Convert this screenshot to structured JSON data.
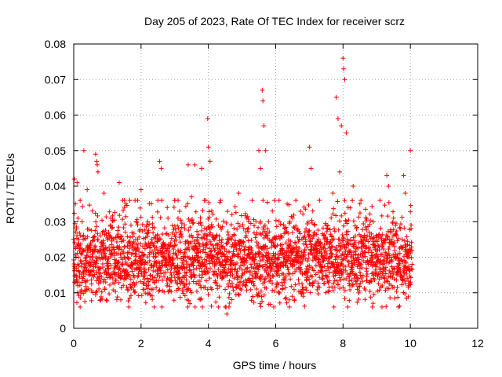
{
  "chart_data": {
    "type": "scatter",
    "title": "Day 205 of 2023, Rate Of TEC Index for receiver scrz",
    "xlabel": "GPS time / hours",
    "ylabel": "ROTI / TECUs",
    "xlim": [
      0,
      12
    ],
    "ylim": [
      0,
      0.08
    ],
    "xticks": [
      0,
      2,
      4,
      6,
      8,
      10,
      12
    ],
    "yticks": [
      0,
      0.01,
      0.02,
      0.03,
      0.04,
      0.05,
      0.06,
      0.07,
      0.08
    ],
    "xtick_labels": [
      "0",
      "2",
      "4",
      "6",
      "8",
      "10",
      "12"
    ],
    "ytick_labels": [
      "0",
      "0.01",
      "0.02",
      "0.03",
      "0.04",
      "0.05",
      "0.06",
      "0.07",
      "0.08"
    ],
    "grid": true,
    "marker": "+",
    "color": "#ff0000",
    "x_data_range": [
      0,
      10.05
    ],
    "series": [
      {
        "name": "ROTI",
        "points": [
          [
            0.02,
            0.042
          ],
          [
            0.05,
            0.035
          ],
          [
            0.08,
            0.028
          ],
          [
            0.1,
            0.041
          ],
          [
            0.12,
            0.012
          ],
          [
            0.15,
            0.025
          ],
          [
            0.2,
            0.019
          ],
          [
            0.25,
            0.03
          ],
          [
            0.3,
            0.05
          ],
          [
            0.35,
            0.022
          ],
          [
            0.4,
            0.039
          ],
          [
            0.45,
            0.015
          ],
          [
            0.5,
            0.024
          ],
          [
            0.55,
            0.033
          ],
          [
            0.6,
            0.018
          ],
          [
            0.65,
            0.049
          ],
          [
            0.68,
            0.047
          ],
          [
            0.7,
            0.046
          ],
          [
            0.72,
            0.044
          ],
          [
            0.75,
            0.02
          ],
          [
            0.8,
            0.008
          ],
          [
            0.85,
            0.027
          ],
          [
            0.9,
            0.038
          ],
          [
            0.95,
            0.013
          ],
          [
            1.0,
            0.022
          ],
          [
            1.1,
            0.031
          ],
          [
            1.2,
            0.017
          ],
          [
            1.3,
            0.026
          ],
          [
            1.35,
            0.041
          ],
          [
            1.4,
            0.014
          ],
          [
            1.5,
            0.034
          ],
          [
            1.55,
            0.035
          ],
          [
            1.6,
            0.021
          ],
          [
            1.7,
            0.029
          ],
          [
            1.8,
            0.012
          ],
          [
            1.9,
            0.025
          ],
          [
            2.0,
            0.039
          ],
          [
            2.1,
            0.018
          ],
          [
            2.2,
            0.03
          ],
          [
            2.3,
            0.011
          ],
          [
            2.4,
            0.024
          ],
          [
            2.5,
            0.036
          ],
          [
            2.55,
            0.047
          ],
          [
            2.6,
            0.045
          ],
          [
            2.7,
            0.02
          ],
          [
            2.8,
            0.031
          ],
          [
            2.9,
            0.015
          ],
          [
            3.0,
            0.036
          ],
          [
            3.1,
            0.022
          ],
          [
            3.2,
            0.013
          ],
          [
            3.3,
            0.028
          ],
          [
            3.4,
            0.046
          ],
          [
            3.45,
            0.007
          ],
          [
            3.5,
            0.037
          ],
          [
            3.6,
            0.046
          ],
          [
            3.7,
            0.024
          ],
          [
            3.8,
            0.045
          ],
          [
            3.9,
            0.016
          ],
          [
            3.98,
            0.059
          ],
          [
            4.0,
            0.051
          ],
          [
            4.05,
            0.047
          ],
          [
            4.1,
            0.033
          ],
          [
            4.2,
            0.022
          ],
          [
            4.3,
            0.029
          ],
          [
            4.4,
            0.014
          ],
          [
            4.5,
            0.006
          ],
          [
            4.55,
            0.004
          ],
          [
            4.6,
            0.025
          ],
          [
            4.7,
            0.032
          ],
          [
            4.8,
            0.018
          ],
          [
            4.9,
            0.038
          ],
          [
            5.0,
            0.024
          ],
          [
            5.1,
            0.012
          ],
          [
            5.2,
            0.03
          ],
          [
            5.3,
            0.036
          ],
          [
            5.4,
            0.021
          ],
          [
            5.5,
            0.05
          ],
          [
            5.55,
            0.045
          ],
          [
            5.6,
            0.067
          ],
          [
            5.62,
            0.064
          ],
          [
            5.65,
            0.057
          ],
          [
            5.7,
            0.05
          ],
          [
            5.75,
            0.028
          ],
          [
            5.8,
            0.015
          ],
          [
            5.9,
            0.033
          ],
          [
            6.0,
            0.023
          ],
          [
            6.1,
            0.036
          ],
          [
            6.2,
            0.012
          ],
          [
            6.3,
            0.027
          ],
          [
            6.4,
            0.008
          ],
          [
            6.5,
            0.031
          ],
          [
            6.6,
            0.019
          ],
          [
            6.7,
            0.025
          ],
          [
            6.8,
            0.011
          ],
          [
            6.9,
            0.028
          ],
          [
            7.0,
            0.051
          ],
          [
            7.05,
            0.045
          ],
          [
            7.1,
            0.033
          ],
          [
            7.2,
            0.02
          ],
          [
            7.3,
            0.036
          ],
          [
            7.4,
            0.014
          ],
          [
            7.5,
            0.029
          ],
          [
            7.6,
            0.024
          ],
          [
            7.7,
            0.038
          ],
          [
            7.8,
            0.065
          ],
          [
            7.85,
            0.059
          ],
          [
            7.9,
            0.044
          ],
          [
            7.95,
            0.057
          ],
          [
            8.0,
            0.076
          ],
          [
            8.02,
            0.073
          ],
          [
            8.05,
            0.07
          ],
          [
            8.1,
            0.055
          ],
          [
            8.15,
            0.034
          ],
          [
            8.2,
            0.012
          ],
          [
            8.3,
            0.04
          ],
          [
            8.4,
            0.028
          ],
          [
            8.5,
            0.035
          ],
          [
            8.6,
            0.019
          ],
          [
            8.7,
            0.025
          ],
          [
            8.8,
            0.013
          ],
          [
            8.9,
            0.03
          ],
          [
            9.0,
            0.022
          ],
          [
            9.1,
            0.036
          ],
          [
            9.2,
            0.017
          ],
          [
            9.3,
            0.043
          ],
          [
            9.35,
            0.04
          ],
          [
            9.4,
            0.024
          ],
          [
            9.5,
            0.031
          ],
          [
            9.6,
            0.015
          ],
          [
            9.7,
            0.028
          ],
          [
            9.8,
            0.043
          ],
          [
            9.85,
            0.038
          ],
          [
            9.9,
            0.021
          ],
          [
            9.95,
            0.012
          ],
          [
            10.0,
            0.05
          ],
          [
            10.02,
            0.028
          ],
          [
            10.05,
            0.018
          ]
        ]
      }
    ]
  }
}
